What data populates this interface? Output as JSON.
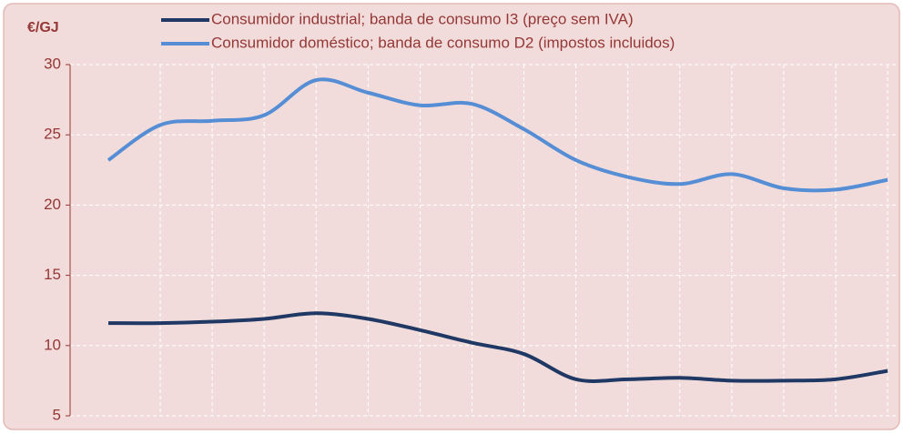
{
  "chart_data": {
    "type": "line",
    "y_label": "€/GJ",
    "categories": [
      null,
      null,
      null,
      null,
      null,
      null,
      null,
      null,
      null,
      null,
      null,
      null,
      null,
      null,
      null,
      null
    ],
    "series": [
      {
        "name": "Consumidor industrial; banda de consumo I3 (preço sem IVA)",
        "color": "#1f3864",
        "values": [
          11.6,
          11.6,
          11.7,
          11.9,
          12.3,
          11.9,
          11.1,
          10.2,
          9.4,
          7.6,
          7.6,
          7.7,
          7.5,
          7.5,
          7.6,
          8.2
        ]
      },
      {
        "name": "Consumidor doméstico; banda de consumo D2 (impostos incluidos)",
        "color": "#558ed5",
        "values": [
          23.2,
          25.7,
          26.0,
          26.4,
          28.9,
          28.0,
          27.1,
          27.2,
          25.4,
          23.2,
          22.0,
          21.5,
          22.2,
          21.2,
          21.1,
          21.8
        ]
      }
    ],
    "ylim": [
      5,
      30
    ],
    "yticks": [
      5,
      10,
      15,
      20,
      25,
      30
    ],
    "grid": true
  }
}
